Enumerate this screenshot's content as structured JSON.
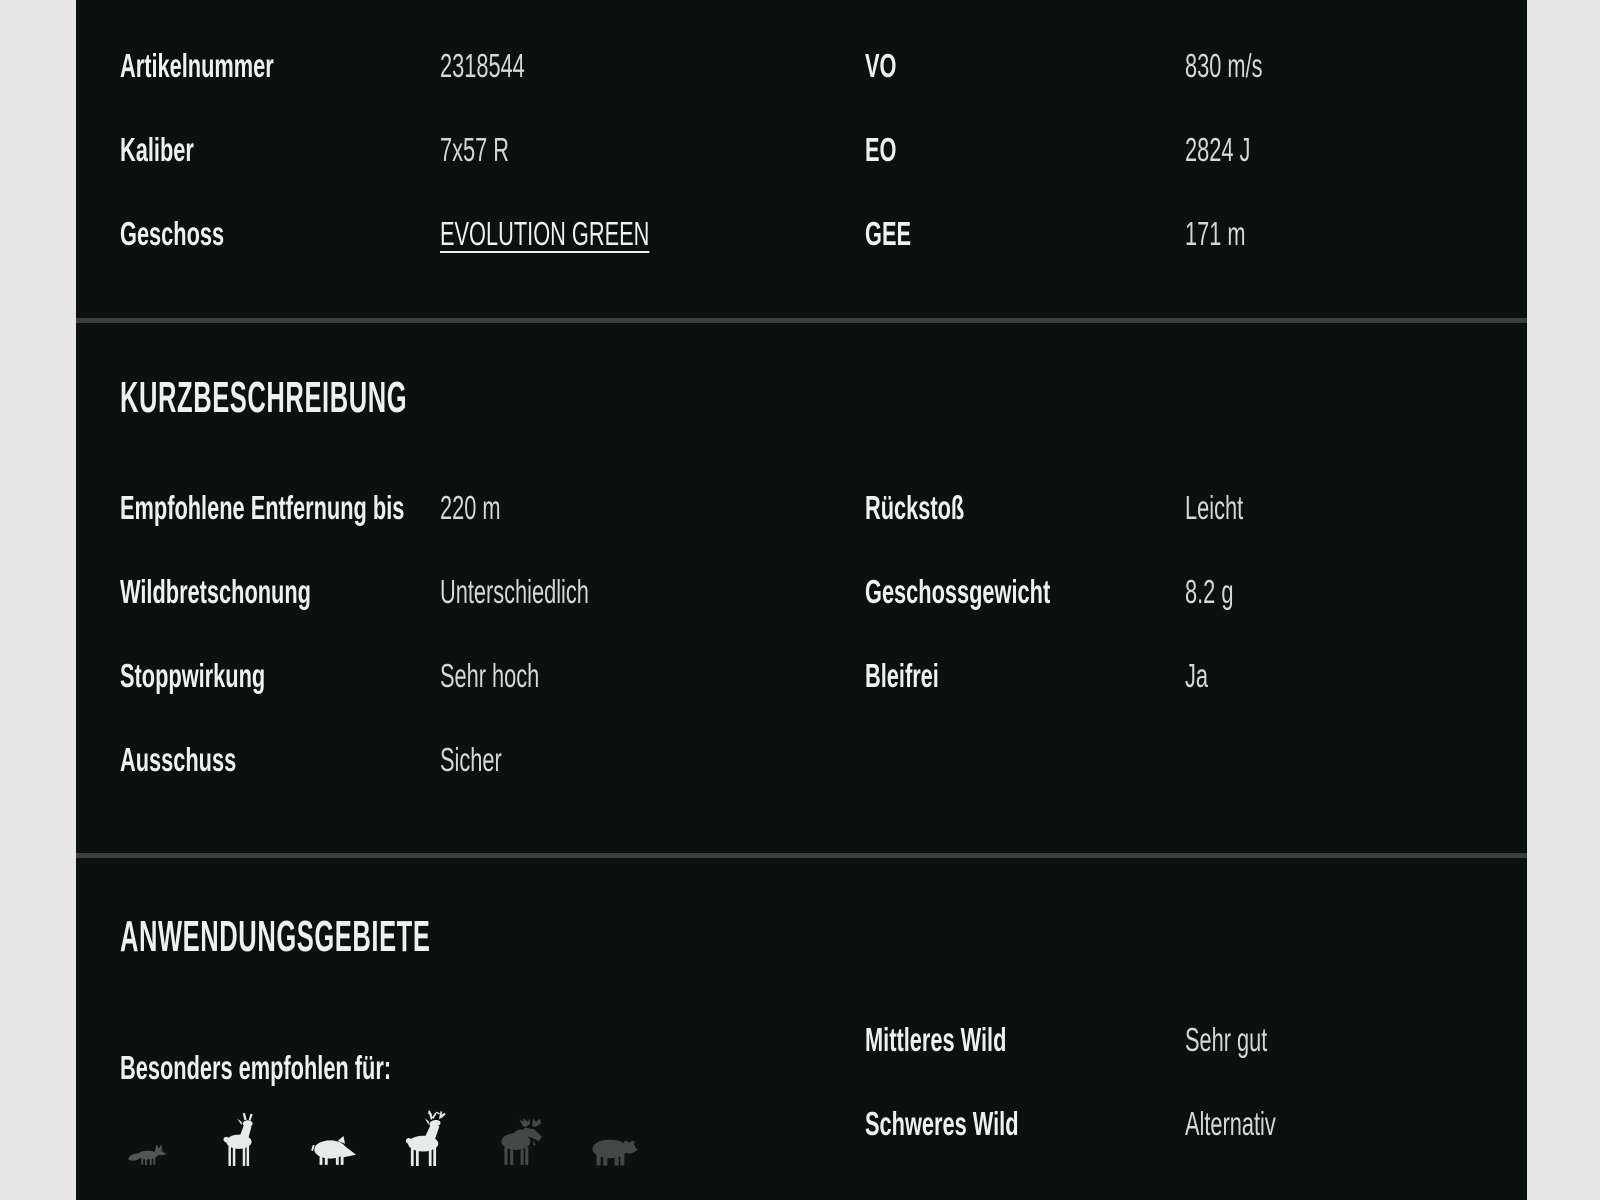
{
  "theme": {
    "page_bg": "#e5e6e5",
    "panel_bg": "#0a110e",
    "divider": "#3b3e3d",
    "label_color": "#eff1f0",
    "value_color": "#d6d8d7",
    "icon_active": "#e9ebea",
    "icon_fox": "#535655",
    "icon_dim": "#454847"
  },
  "top_specs": {
    "rows": [
      {
        "label_left": "Artikelnummer",
        "value_left": "2318544",
        "left_link": false,
        "label_right": "VO",
        "value_right": "830 m/s"
      },
      {
        "label_left": "Kaliber",
        "value_left": "7x57 R",
        "left_link": false,
        "label_right": "EO",
        "value_right": "2824 J"
      },
      {
        "label_left": "Geschoss",
        "value_left": "EVOLUTION GREEN",
        "left_link": true,
        "label_right": "GEE",
        "value_right": "171 m"
      }
    ]
  },
  "kurzbeschreibung": {
    "title": "KURZBESCHREIBUNG",
    "rows": [
      {
        "label_left": "Empfohlene Entfernung bis",
        "value_left": "220 m",
        "left_link": false,
        "label_right": "Rückstoß",
        "value_right": "Leicht"
      },
      {
        "label_left": "Wildbretschonung",
        "value_left": "Unterschiedlich",
        "left_link": false,
        "label_right": "Geschossgewicht",
        "value_right": "8.2 g"
      },
      {
        "label_left": "Stoppwirkung",
        "value_left": "Sehr hoch",
        "left_link": false,
        "label_right": "Bleifrei",
        "value_right": "Ja"
      },
      {
        "label_left": "Ausschuss",
        "value_left": "Sicher",
        "left_link": false,
        "label_right": "",
        "value_right": ""
      }
    ]
  },
  "anwendungsgebiete": {
    "title": "ANWENDUNGSGEBIETE",
    "recommended_label": "Besonders empfohlen für:",
    "animals": [
      {
        "name": "fox",
        "active": false
      },
      {
        "name": "roe-deer",
        "active": true
      },
      {
        "name": "wild-boar",
        "active": true
      },
      {
        "name": "red-deer",
        "active": true
      },
      {
        "name": "moose",
        "active": false
      },
      {
        "name": "bear",
        "active": false
      }
    ],
    "rows": [
      {
        "label": "Mittleres Wild",
        "value": "Sehr gut"
      },
      {
        "label": "Schweres Wild",
        "value": "Alternativ"
      }
    ]
  }
}
